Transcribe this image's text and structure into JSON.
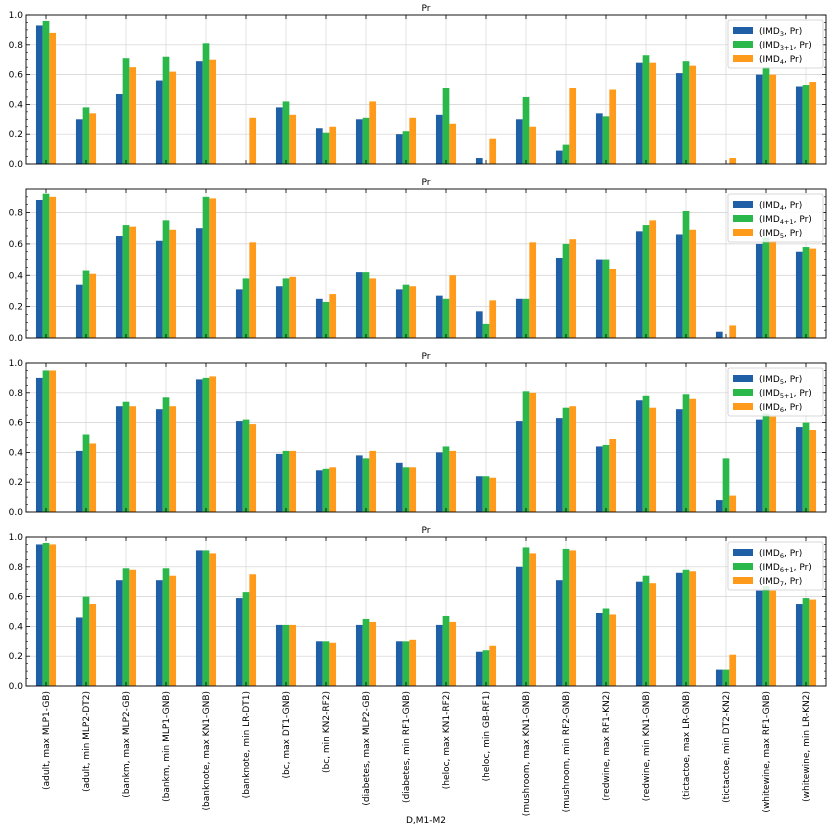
{
  "chart_data": {
    "type": "bar",
    "xlabel": "D,M1-M2",
    "categories": [
      "(adult, max MLP1-GB)",
      "(adult, min MLP2-DT2)",
      "(bankm, max MLP2-GB)",
      "(bankm, min MLP1-GNB)",
      "(banknote, max KN1-GNB)",
      "(banknote, min LR-DT1)",
      "(bc, max DT1-GNB)",
      "(bc, min KN2-RF2)",
      "(diabetes, max MLP2-GB)",
      "(diabetes, min RF1-GNB)",
      "(heloc, max KN1-RF2)",
      "(heloc, min GB-RF1)",
      "(mushroom, max KN1-GNB)",
      "(mushroom, min RF2-GNB)",
      "(redwine, max RF1-KN2)",
      "(redwine, min KN1-GNB)",
      "(tictactoe, max LR-GNB)",
      "(tictactoe, min DT2-KN2)",
      "(whitewine, max RF1-GNB)",
      "(whitewine, min LR-KN2)"
    ],
    "colors": [
      "#1f5fa6",
      "#2ab84a",
      "#ff9a1a"
    ],
    "panels": [
      {
        "title": "Pr",
        "ylim": [
          0,
          1.0
        ],
        "yticks": [
          "0.0",
          "0.2",
          "0.4",
          "0.6",
          "0.8",
          "1.0"
        ],
        "series": [
          {
            "name": "(IMD",
            "sub": "3",
            "suffix": ", Pr)",
            "values": [
              0.93,
              0.3,
              0.47,
              0.56,
              0.69,
              0.0,
              0.38,
              0.24,
              0.3,
              0.2,
              0.33,
              0.04,
              0.3,
              0.09,
              0.34,
              0.68,
              0.61,
              0.0,
              0.6,
              0.52
            ]
          },
          {
            "name": "(IMD",
            "sub": "3+1",
            "suffix": ", Pr)",
            "values": [
              0.96,
              0.38,
              0.71,
              0.72,
              0.81,
              0.0,
              0.42,
              0.21,
              0.31,
              0.22,
              0.51,
              0.0,
              0.45,
              0.13,
              0.32,
              0.73,
              0.69,
              0.0,
              0.65,
              0.53
            ]
          },
          {
            "name": "(IMD",
            "sub": "4",
            "suffix": ", Pr)",
            "values": [
              0.88,
              0.34,
              0.65,
              0.62,
              0.7,
              0.31,
              0.33,
              0.25,
              0.42,
              0.31,
              0.27,
              0.17,
              0.25,
              0.51,
              0.5,
              0.68,
              0.66,
              0.04,
              0.6,
              0.55
            ]
          }
        ]
      },
      {
        "title": "Pr",
        "ylim": [
          0,
          0.95
        ],
        "yticks": [
          "0.0",
          "0.2",
          "0.4",
          "0.6",
          "0.8"
        ],
        "series": [
          {
            "name": "(IMD",
            "sub": "4",
            "suffix": ", Pr)",
            "values": [
              0.88,
              0.34,
              0.65,
              0.62,
              0.7,
              0.31,
              0.33,
              0.25,
              0.42,
              0.31,
              0.27,
              0.17,
              0.25,
              0.51,
              0.5,
              0.68,
              0.66,
              0.04,
              0.6,
              0.55
            ]
          },
          {
            "name": "(IMD",
            "sub": "4+1",
            "suffix": ", Pr)",
            "values": [
              0.92,
              0.43,
              0.72,
              0.75,
              0.9,
              0.38,
              0.38,
              0.23,
              0.42,
              0.34,
              0.25,
              0.09,
              0.25,
              0.6,
              0.5,
              0.72,
              0.81,
              0.0,
              0.64,
              0.58
            ]
          },
          {
            "name": "(IMD",
            "sub": "5",
            "suffix": ", Pr)",
            "values": [
              0.9,
              0.41,
              0.71,
              0.69,
              0.89,
              0.61,
              0.39,
              0.28,
              0.38,
              0.33,
              0.4,
              0.24,
              0.61,
              0.63,
              0.44,
              0.75,
              0.69,
              0.08,
              0.62,
              0.57
            ]
          }
        ]
      },
      {
        "title": "Pr",
        "ylim": [
          0,
          1.0
        ],
        "yticks": [
          "0.0",
          "0.2",
          "0.4",
          "0.6",
          "0.8",
          "1.0"
        ],
        "series": [
          {
            "name": "(IMD",
            "sub": "5",
            "suffix": ", Pr)",
            "values": [
              0.9,
              0.41,
              0.71,
              0.69,
              0.89,
              0.61,
              0.39,
              0.28,
              0.38,
              0.33,
              0.4,
              0.24,
              0.61,
              0.63,
              0.44,
              0.75,
              0.69,
              0.08,
              0.62,
              0.57
            ]
          },
          {
            "name": "(IMD",
            "sub": "5+1",
            "suffix": ", Pr)",
            "values": [
              0.95,
              0.52,
              0.74,
              0.77,
              0.9,
              0.62,
              0.41,
              0.29,
              0.36,
              0.3,
              0.44,
              0.24,
              0.81,
              0.7,
              0.45,
              0.78,
              0.79,
              0.36,
              0.66,
              0.6
            ]
          },
          {
            "name": "(IMD",
            "sub": "6",
            "suffix": ", Pr)",
            "values": [
              0.95,
              0.46,
              0.71,
              0.71,
              0.91,
              0.59,
              0.41,
              0.3,
              0.41,
              0.3,
              0.41,
              0.23,
              0.8,
              0.71,
              0.49,
              0.7,
              0.76,
              0.11,
              0.64,
              0.55
            ]
          }
        ]
      },
      {
        "title": "Pr",
        "ylim": [
          0,
          1.0
        ],
        "yticks": [
          "0.0",
          "0.2",
          "0.4",
          "0.6",
          "0.8",
          "1.0"
        ],
        "series": [
          {
            "name": "(IMD",
            "sub": "6",
            "suffix": ", Pr)",
            "values": [
              0.95,
              0.46,
              0.71,
              0.71,
              0.91,
              0.59,
              0.41,
              0.3,
              0.41,
              0.3,
              0.41,
              0.23,
              0.8,
              0.71,
              0.49,
              0.7,
              0.76,
              0.11,
              0.64,
              0.55
            ]
          },
          {
            "name": "(IMD",
            "sub": "6+1",
            "suffix": ", Pr)",
            "values": [
              0.96,
              0.6,
              0.79,
              0.79,
              0.91,
              0.63,
              0.41,
              0.3,
              0.45,
              0.3,
              0.47,
              0.24,
              0.93,
              0.92,
              0.52,
              0.74,
              0.78,
              0.11,
              0.67,
              0.59
            ]
          },
          {
            "name": "(IMD",
            "sub": "7",
            "suffix": ", Pr)",
            "values": [
              0.95,
              0.55,
              0.78,
              0.74,
              0.89,
              0.75,
              0.41,
              0.29,
              0.43,
              0.31,
              0.43,
              0.27,
              0.89,
              0.91,
              0.48,
              0.69,
              0.77,
              0.21,
              0.64,
              0.58
            ]
          }
        ]
      }
    ]
  }
}
